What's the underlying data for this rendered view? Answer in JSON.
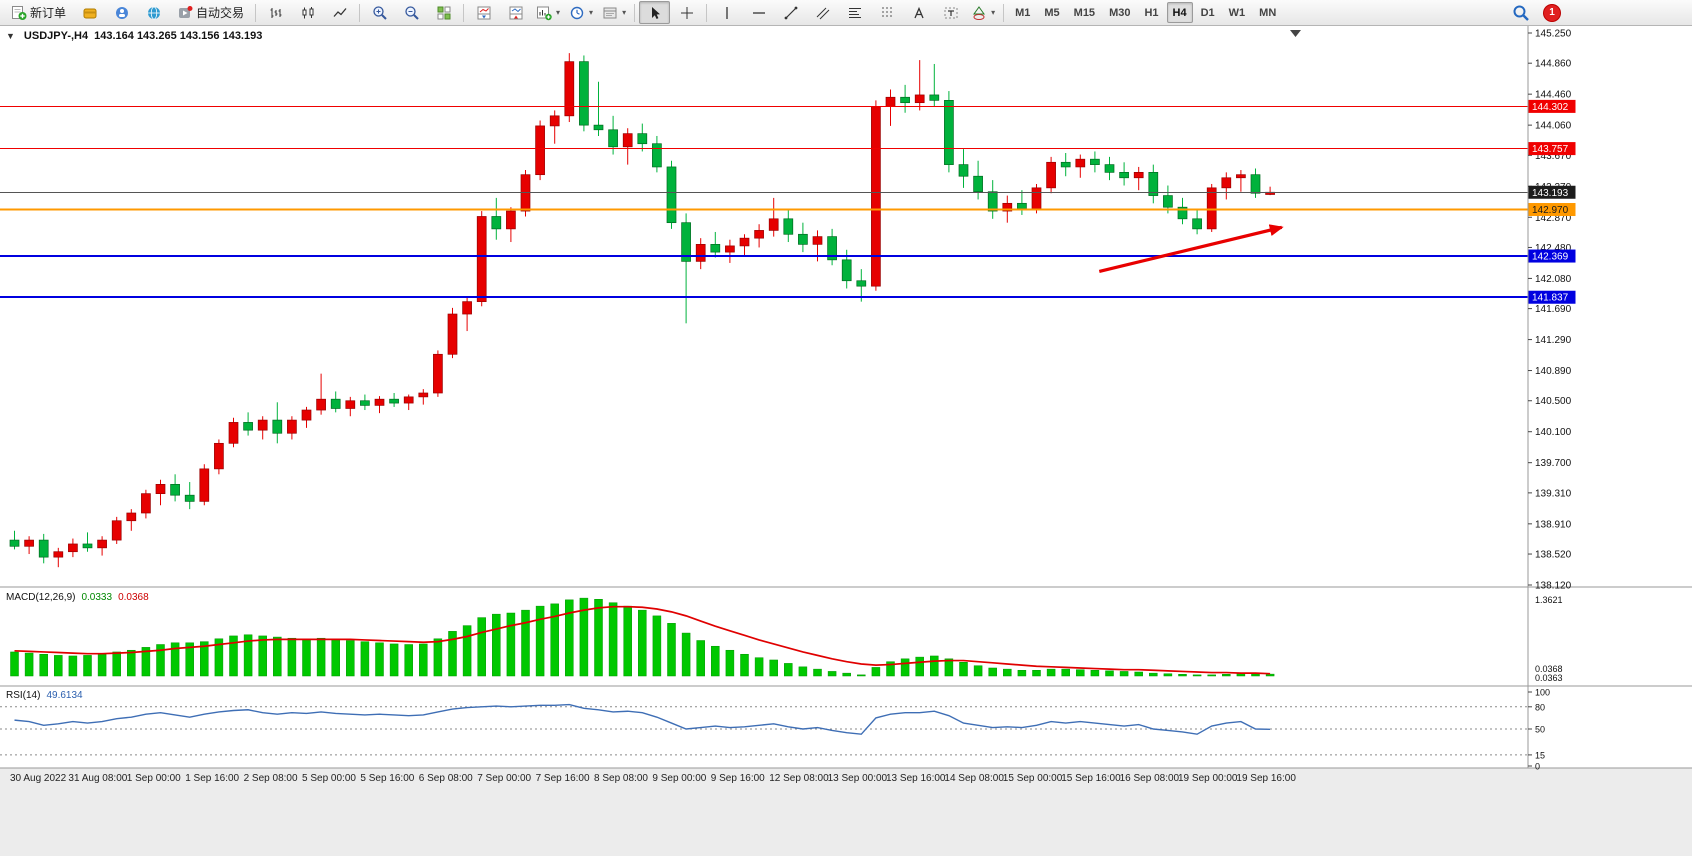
{
  "window": {
    "expander": "▼",
    "symbol_title": "USDJPY-,H4",
    "ohlc_text": "143.164 143.265 143.156 143.193"
  },
  "icons": {
    "caret": "▾"
  },
  "toolbar": {
    "new_order": "新订单",
    "autotrade": "自动交易",
    "timeframes": [
      "M1",
      "M5",
      "M15",
      "M30",
      "H1",
      "H4",
      "D1",
      "W1",
      "MN"
    ],
    "active_timeframe": "H4",
    "notification_count": "1"
  },
  "indicators": {
    "macd": {
      "label": "MACD(12,26,9)",
      "value_main": "0.0333",
      "value_signal": "0.0368",
      "scale_top": "1.3621",
      "scale_bottom_1": "0.0368",
      "scale_bottom_2": "0.0363"
    },
    "rsi": {
      "label": "RSI(14)",
      "value": "49.6134",
      "scale_labels": [
        "100",
        "80",
        "50",
        "15",
        "0"
      ]
    }
  },
  "chart_data": {
    "type": "candlestick",
    "symbol": "USDJPY-",
    "timeframe": "H4",
    "ylim": [
      138.12,
      145.25
    ],
    "up_color": "#e60000",
    "up_edge": "#990000",
    "down_color": "#00b23c",
    "down_edge": "#006b20",
    "current": {
      "open": 143.164,
      "high": 143.265,
      "low": 143.156,
      "close": 143.193
    },
    "price_axis_ticks": [
      "145.250",
      "144.860",
      "144.460",
      "144.060",
      "143.670",
      "143.270",
      "142.870",
      "142.480",
      "142.080",
      "141.690",
      "141.290",
      "140.890",
      "140.500",
      "140.100",
      "139.700",
      "139.310",
      "138.910",
      "138.520",
      "138.120"
    ],
    "x_labels": [
      "30 Aug 2022",
      "31 Aug 08:00",
      "1 Sep 00:00",
      "1 Sep 16:00",
      "2 Sep 08:00",
      "5 Sep 00:00",
      "5 Sep 16:00",
      "6 Sep 08:00",
      "7 Sep 00:00",
      "7 Sep 16:00",
      "8 Sep 08:00",
      "9 Sep 00:00",
      "9 Sep 16:00",
      "12 Sep 08:00",
      "13 Sep 00:00",
      "13 Sep 16:00",
      "14 Sep 08:00",
      "15 Sep 00:00",
      "15 Sep 16:00",
      "16 Sep 08:00",
      "19 Sep 00:00",
      "19 Sep 16:00"
    ],
    "label_step_candles": 4,
    "hlines": [
      {
        "price": 144.302,
        "label": "144.302",
        "color": "#f00000",
        "width": 1.2,
        "text": "#ffffff"
      },
      {
        "price": 143.757,
        "label": "143.757",
        "color": "#f00000",
        "width": 1.2,
        "text": "#ffffff"
      },
      {
        "price": 142.97,
        "label": "142.970",
        "color": "#ff9900",
        "width": 2,
        "text": "#1a1a1a"
      },
      {
        "price": 142.369,
        "label": "142.369",
        "color": "#0000e0",
        "width": 2,
        "text": "#ffffff"
      },
      {
        "price": 141.837,
        "label": "141.837",
        "color": "#0000e0",
        "width": 2,
        "text": "#ffffff"
      }
    ],
    "current_price": {
      "price": 143.193,
      "label": "143.193",
      "line_color": "#555555",
      "badge_color": "#1c1c1c",
      "text": "#ffffff"
    },
    "arrow": {
      "i1": 74.3,
      "p1": 142.17,
      "i2": 86.8,
      "p2": 142.74,
      "color": "#e80000"
    },
    "candles": [
      [
        138.7,
        138.82,
        138.58,
        138.62
      ],
      [
        138.62,
        138.75,
        138.52,
        138.7
      ],
      [
        138.7,
        138.78,
        138.4,
        138.48
      ],
      [
        138.48,
        138.6,
        138.35,
        138.55
      ],
      [
        138.55,
        138.72,
        138.48,
        138.65
      ],
      [
        138.65,
        138.8,
        138.55,
        138.6
      ],
      [
        138.6,
        138.75,
        138.5,
        138.7
      ],
      [
        138.7,
        139.0,
        138.65,
        138.95
      ],
      [
        138.95,
        139.1,
        138.82,
        139.05
      ],
      [
        139.05,
        139.35,
        138.98,
        139.3
      ],
      [
        139.3,
        139.48,
        139.15,
        139.42
      ],
      [
        139.42,
        139.55,
        139.2,
        139.28
      ],
      [
        139.28,
        139.45,
        139.1,
        139.2
      ],
      [
        139.2,
        139.68,
        139.15,
        139.62
      ],
      [
        139.62,
        140.0,
        139.55,
        139.95
      ],
      [
        139.95,
        140.28,
        139.9,
        140.22
      ],
      [
        140.22,
        140.35,
        140.05,
        140.12
      ],
      [
        140.12,
        140.3,
        140.0,
        140.25
      ],
      [
        140.25,
        140.48,
        139.95,
        140.08
      ],
      [
        140.08,
        140.3,
        140.0,
        140.25
      ],
      [
        140.25,
        140.42,
        140.15,
        140.38
      ],
      [
        140.38,
        140.85,
        140.32,
        140.52
      ],
      [
        140.52,
        140.62,
        140.35,
        140.4
      ],
      [
        140.4,
        140.55,
        140.3,
        140.5
      ],
      [
        140.5,
        140.58,
        140.38,
        140.44
      ],
      [
        140.44,
        140.56,
        140.34,
        140.52
      ],
      [
        140.52,
        140.6,
        140.42,
        140.47
      ],
      [
        140.47,
        140.58,
        140.38,
        140.55
      ],
      [
        140.55,
        140.65,
        140.45,
        140.6
      ],
      [
        140.6,
        141.15,
        140.55,
        141.1
      ],
      [
        141.1,
        141.7,
        141.05,
        141.62
      ],
      [
        141.62,
        141.85,
        141.4,
        141.78
      ],
      [
        141.78,
        142.95,
        141.72,
        142.88
      ],
      [
        142.88,
        143.12,
        142.58,
        142.72
      ],
      [
        142.72,
        143.0,
        142.55,
        142.95
      ],
      [
        142.95,
        143.48,
        142.88,
        143.42
      ],
      [
        143.42,
        144.12,
        143.35,
        144.05
      ],
      [
        144.05,
        144.25,
        143.82,
        144.18
      ],
      [
        144.18,
        144.99,
        144.1,
        144.88
      ],
      [
        144.88,
        144.96,
        143.98,
        144.06
      ],
      [
        144.06,
        144.62,
        143.92,
        144.0
      ],
      [
        144.0,
        144.18,
        143.68,
        143.78
      ],
      [
        143.78,
        144.02,
        143.55,
        143.95
      ],
      [
        143.95,
        144.08,
        143.72,
        143.82
      ],
      [
        143.82,
        143.92,
        143.45,
        143.52
      ],
      [
        143.52,
        143.6,
        142.72,
        142.8
      ],
      [
        142.8,
        142.92,
        141.5,
        142.3
      ],
      [
        142.3,
        142.6,
        142.2,
        142.52
      ],
      [
        142.52,
        142.68,
        142.35,
        142.42
      ],
      [
        142.42,
        142.58,
        142.28,
        142.5
      ],
      [
        142.5,
        142.65,
        142.38,
        142.6
      ],
      [
        142.6,
        142.78,
        142.48,
        142.7
      ],
      [
        142.7,
        143.12,
        142.62,
        142.85
      ],
      [
        142.85,
        142.98,
        142.55,
        142.65
      ],
      [
        142.65,
        142.8,
        142.42,
        142.52
      ],
      [
        142.52,
        142.7,
        142.3,
        142.62
      ],
      [
        142.62,
        142.72,
        142.25,
        142.32
      ],
      [
        142.32,
        142.45,
        141.95,
        142.05
      ],
      [
        142.05,
        142.2,
        141.78,
        141.98
      ],
      [
        141.98,
        144.38,
        141.92,
        144.3
      ],
      [
        144.3,
        144.52,
        144.05,
        144.42
      ],
      [
        144.42,
        144.58,
        144.22,
        144.35
      ],
      [
        144.35,
        144.9,
        144.25,
        144.45
      ],
      [
        144.45,
        144.85,
        144.3,
        144.38
      ],
      [
        144.38,
        144.5,
        143.45,
        143.55
      ],
      [
        143.55,
        143.75,
        143.25,
        143.4
      ],
      [
        143.4,
        143.6,
        143.1,
        143.2
      ],
      [
        143.2,
        143.35,
        142.85,
        142.95
      ],
      [
        142.95,
        143.15,
        142.8,
        143.05
      ],
      [
        143.05,
        143.22,
        142.9,
        142.98
      ],
      [
        142.98,
        143.3,
        142.92,
        143.25
      ],
      [
        143.25,
        143.65,
        143.18,
        143.58
      ],
      [
        143.58,
        143.7,
        143.4,
        143.52
      ],
      [
        143.52,
        143.68,
        143.38,
        143.62
      ],
      [
        143.62,
        143.72,
        143.45,
        143.55
      ],
      [
        143.55,
        143.65,
        143.35,
        143.45
      ],
      [
        143.45,
        143.58,
        143.28,
        143.38
      ],
      [
        143.38,
        143.52,
        143.22,
        143.45
      ],
      [
        143.45,
        143.55,
        143.05,
        143.15
      ],
      [
        143.15,
        143.28,
        142.92,
        143.0
      ],
      [
        143.0,
        143.12,
        142.78,
        142.85
      ],
      [
        142.85,
        142.98,
        142.65,
        142.72
      ],
      [
        142.72,
        143.3,
        142.68,
        143.25
      ],
      [
        143.25,
        143.45,
        143.1,
        143.38
      ],
      [
        143.38,
        143.48,
        143.2,
        143.42
      ],
      [
        143.42,
        143.5,
        143.12,
        143.18
      ],
      [
        143.164,
        143.265,
        143.156,
        143.193
      ]
    ],
    "macd": {
      "ylim": [
        0,
        1.3621
      ],
      "hist_color": "#00c800",
      "hist_edge": "#009600",
      "signal_color": "#e00000",
      "histogram": [
        0.42,
        0.4,
        0.38,
        0.36,
        0.35,
        0.36,
        0.38,
        0.42,
        0.45,
        0.5,
        0.55,
        0.58,
        0.58,
        0.6,
        0.65,
        0.7,
        0.72,
        0.7,
        0.68,
        0.66,
        0.64,
        0.66,
        0.64,
        0.62,
        0.6,
        0.58,
        0.56,
        0.55,
        0.56,
        0.65,
        0.78,
        0.88,
        1.02,
        1.08,
        1.1,
        1.15,
        1.22,
        1.26,
        1.33,
        1.36,
        1.34,
        1.28,
        1.22,
        1.15,
        1.05,
        0.92,
        0.75,
        0.62,
        0.52,
        0.45,
        0.38,
        0.32,
        0.28,
        0.22,
        0.16,
        0.12,
        0.08,
        0.05,
        0.02,
        0.15,
        0.25,
        0.3,
        0.33,
        0.35,
        0.3,
        0.24,
        0.18,
        0.14,
        0.12,
        0.1,
        0.1,
        0.12,
        0.12,
        0.11,
        0.1,
        0.09,
        0.08,
        0.07,
        0.05,
        0.04,
        0.03,
        0.02,
        0.02,
        0.03,
        0.04,
        0.035,
        0.033
      ],
      "signal": [
        0.44,
        0.43,
        0.42,
        0.41,
        0.4,
        0.39,
        0.39,
        0.4,
        0.41,
        0.43,
        0.45,
        0.48,
        0.5,
        0.52,
        0.55,
        0.58,
        0.61,
        0.63,
        0.64,
        0.64,
        0.64,
        0.64,
        0.64,
        0.64,
        0.63,
        0.62,
        0.61,
        0.6,
        0.59,
        0.6,
        0.64,
        0.69,
        0.76,
        0.82,
        0.88,
        0.93,
        0.99,
        1.04,
        1.1,
        1.15,
        1.19,
        1.21,
        1.21,
        1.2,
        1.17,
        1.12,
        1.05,
        0.96,
        0.87,
        0.79,
        0.71,
        0.63,
        0.56,
        0.49,
        0.42,
        0.36,
        0.3,
        0.25,
        0.21,
        0.19,
        0.2,
        0.22,
        0.24,
        0.26,
        0.27,
        0.27,
        0.25,
        0.23,
        0.21,
        0.19,
        0.17,
        0.16,
        0.15,
        0.14,
        0.13,
        0.12,
        0.11,
        0.11,
        0.1,
        0.09,
        0.08,
        0.07,
        0.06,
        0.06,
        0.05,
        0.05,
        0.04
      ]
    },
    "rsi": {
      "line_color": "#3e6eb5",
      "levels": [
        80,
        50,
        15
      ],
      "values": [
        62,
        60,
        55,
        57,
        60,
        58,
        60,
        64,
        66,
        70,
        72,
        69,
        66,
        70,
        73,
        75,
        76,
        72,
        70,
        72,
        71,
        73,
        71,
        70,
        69,
        70,
        69,
        68,
        69,
        73,
        77,
        79,
        80,
        81,
        80,
        81,
        82,
        82,
        83,
        78,
        76,
        73,
        74,
        72,
        66,
        58,
        50,
        52,
        54,
        52,
        53,
        55,
        57,
        53,
        50,
        52,
        48,
        45,
        43,
        65,
        70,
        72,
        72,
        74,
        68,
        58,
        55,
        52,
        53,
        52,
        55,
        60,
        58,
        60,
        58,
        56,
        54,
        56,
        50,
        48,
        46,
        43,
        54,
        58,
        60,
        50,
        49.6
      ]
    }
  }
}
